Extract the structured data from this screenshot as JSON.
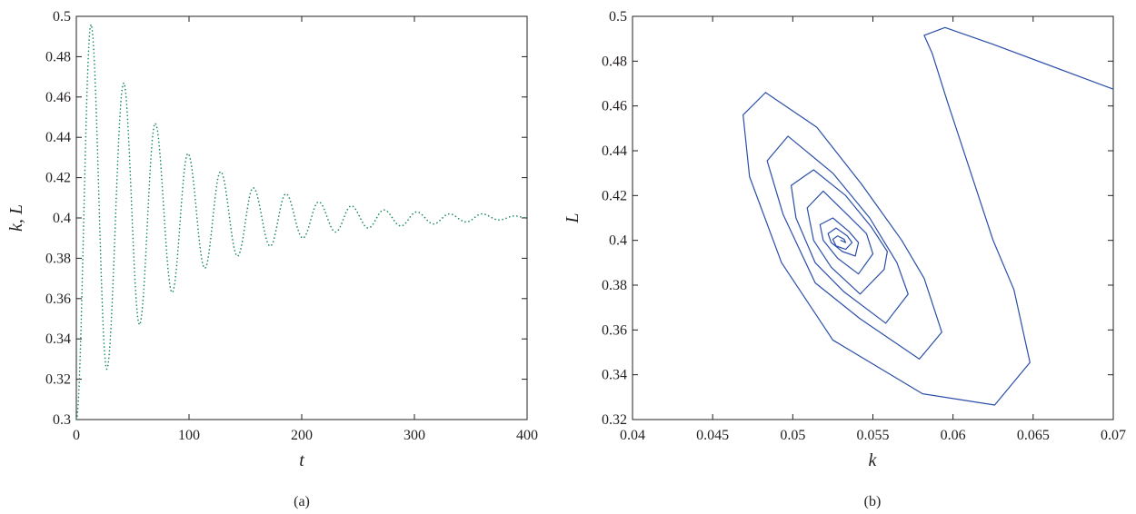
{
  "chart_data": [
    {
      "type": "line",
      "panel_label": "(a)",
      "xlabel": "t",
      "ylabel": "k, L",
      "xlim": [
        0,
        400
      ],
      "ylim": [
        0.3,
        0.5
      ],
      "xticks": [
        0,
        100,
        200,
        300,
        400
      ],
      "xtick_labels": [
        "0",
        "100",
        "200",
        "300",
        "400"
      ],
      "yticks": [
        0.3,
        0.32,
        0.34,
        0.36,
        0.38,
        0.4,
        0.42,
        0.44,
        0.46,
        0.48,
        0.5
      ],
      "ytick_labels": [
        "0.3",
        "0.32",
        "0.34",
        "0.36",
        "0.38",
        "0.4",
        "0.42",
        "0.44",
        "0.46",
        "0.48",
        "0.5"
      ],
      "grid": false,
      "line_style": "dotted",
      "color": "#1a8a5a",
      "series": [
        {
          "x": [
            0,
            13,
            27,
            42,
            56,
            70,
            85,
            99,
            114,
            128,
            143,
            157,
            172,
            186,
            201,
            215,
            230,
            244,
            259,
            273,
            288,
            302,
            317,
            331,
            346,
            360,
            375,
            389,
            400
          ],
          "values": [
            0.3,
            0.496,
            0.325,
            0.467,
            0.347,
            0.447,
            0.363,
            0.432,
            0.375,
            0.423,
            0.381,
            0.415,
            0.386,
            0.412,
            0.39,
            0.408,
            0.393,
            0.406,
            0.395,
            0.404,
            0.396,
            0.403,
            0.397,
            0.402,
            0.398,
            0.402,
            0.399,
            0.401,
            0.4
          ]
        }
      ]
    },
    {
      "type": "line",
      "panel_label": "(b)",
      "xlabel": "k",
      "ylabel": "L",
      "xlim": [
        0.04,
        0.07
      ],
      "ylim": [
        0.32,
        0.5
      ],
      "xticks": [
        0.04,
        0.045,
        0.05,
        0.055,
        0.06,
        0.065,
        0.07
      ],
      "xtick_labels": [
        "0.04",
        "0.045",
        "0.05",
        "0.055",
        "0.06",
        "0.065",
        "0.07"
      ],
      "yticks": [
        0.32,
        0.34,
        0.36,
        0.38,
        0.4,
        0.42,
        0.44,
        0.46,
        0.48,
        0.5
      ],
      "ytick_labels": [
        "0.32",
        "0.34",
        "0.36",
        "0.38",
        "0.4",
        "0.42",
        "0.44",
        "0.46",
        "0.48",
        "0.5"
      ],
      "grid": false,
      "line_style": "solid",
      "color": "#2b4fa8",
      "series": [
        {
          "x": [
            0.07,
            0.0685,
            0.0625,
            0.0595,
            0.0582,
            0.0587,
            0.0596,
            0.0625,
            0.0638,
            0.0648,
            0.0626,
            0.0581,
            0.0525,
            0.0493,
            0.0473,
            0.0469,
            0.0483,
            0.0515,
            0.0543,
            0.0568,
            0.0582,
            0.0593,
            0.0579,
            0.0542,
            0.0514,
            0.0494,
            0.0484,
            0.0497,
            0.0525,
            0.0548,
            0.0565,
            0.0572,
            0.0558,
            0.0532,
            0.0514,
            0.0502,
            0.0499,
            0.0513,
            0.0533,
            0.0549,
            0.0559,
            0.0557,
            0.0542,
            0.0524,
            0.0513,
            0.0509,
            0.0519,
            0.0534,
            0.0546,
            0.055,
            0.0541,
            0.0528,
            0.0519,
            0.0517,
            0.0525,
            0.0535,
            0.0541,
            0.0539,
            0.0531,
            0.0524,
            0.0522,
            0.0527,
            0.0534,
            0.0537,
            0.0533,
            0.0527,
            0.0525,
            0.0528,
            0.0532,
            0.0533,
            0.053
          ],
          "values": [
            0.4675,
            0.4715,
            0.4875,
            0.495,
            0.4915,
            0.4835,
            0.463,
            0.4,
            0.378,
            0.3455,
            0.3265,
            0.3315,
            0.3555,
            0.39,
            0.4285,
            0.456,
            0.466,
            0.4505,
            0.425,
            0.4,
            0.383,
            0.359,
            0.347,
            0.365,
            0.381,
            0.4115,
            0.4355,
            0.4465,
            0.43,
            0.41,
            0.39,
            0.376,
            0.363,
            0.377,
            0.39,
            0.41,
            0.4245,
            0.4315,
            0.42,
            0.406,
            0.395,
            0.387,
            0.376,
            0.388,
            0.4,
            0.4145,
            0.422,
            0.4115,
            0.403,
            0.394,
            0.385,
            0.392,
            0.4,
            0.407,
            0.41,
            0.404,
            0.399,
            0.393,
            0.395,
            0.399,
            0.403,
            0.4055,
            0.402,
            0.399,
            0.396,
            0.3975,
            0.4005,
            0.402,
            0.4005,
            0.399,
            0.4
          ]
        }
      ]
    }
  ]
}
